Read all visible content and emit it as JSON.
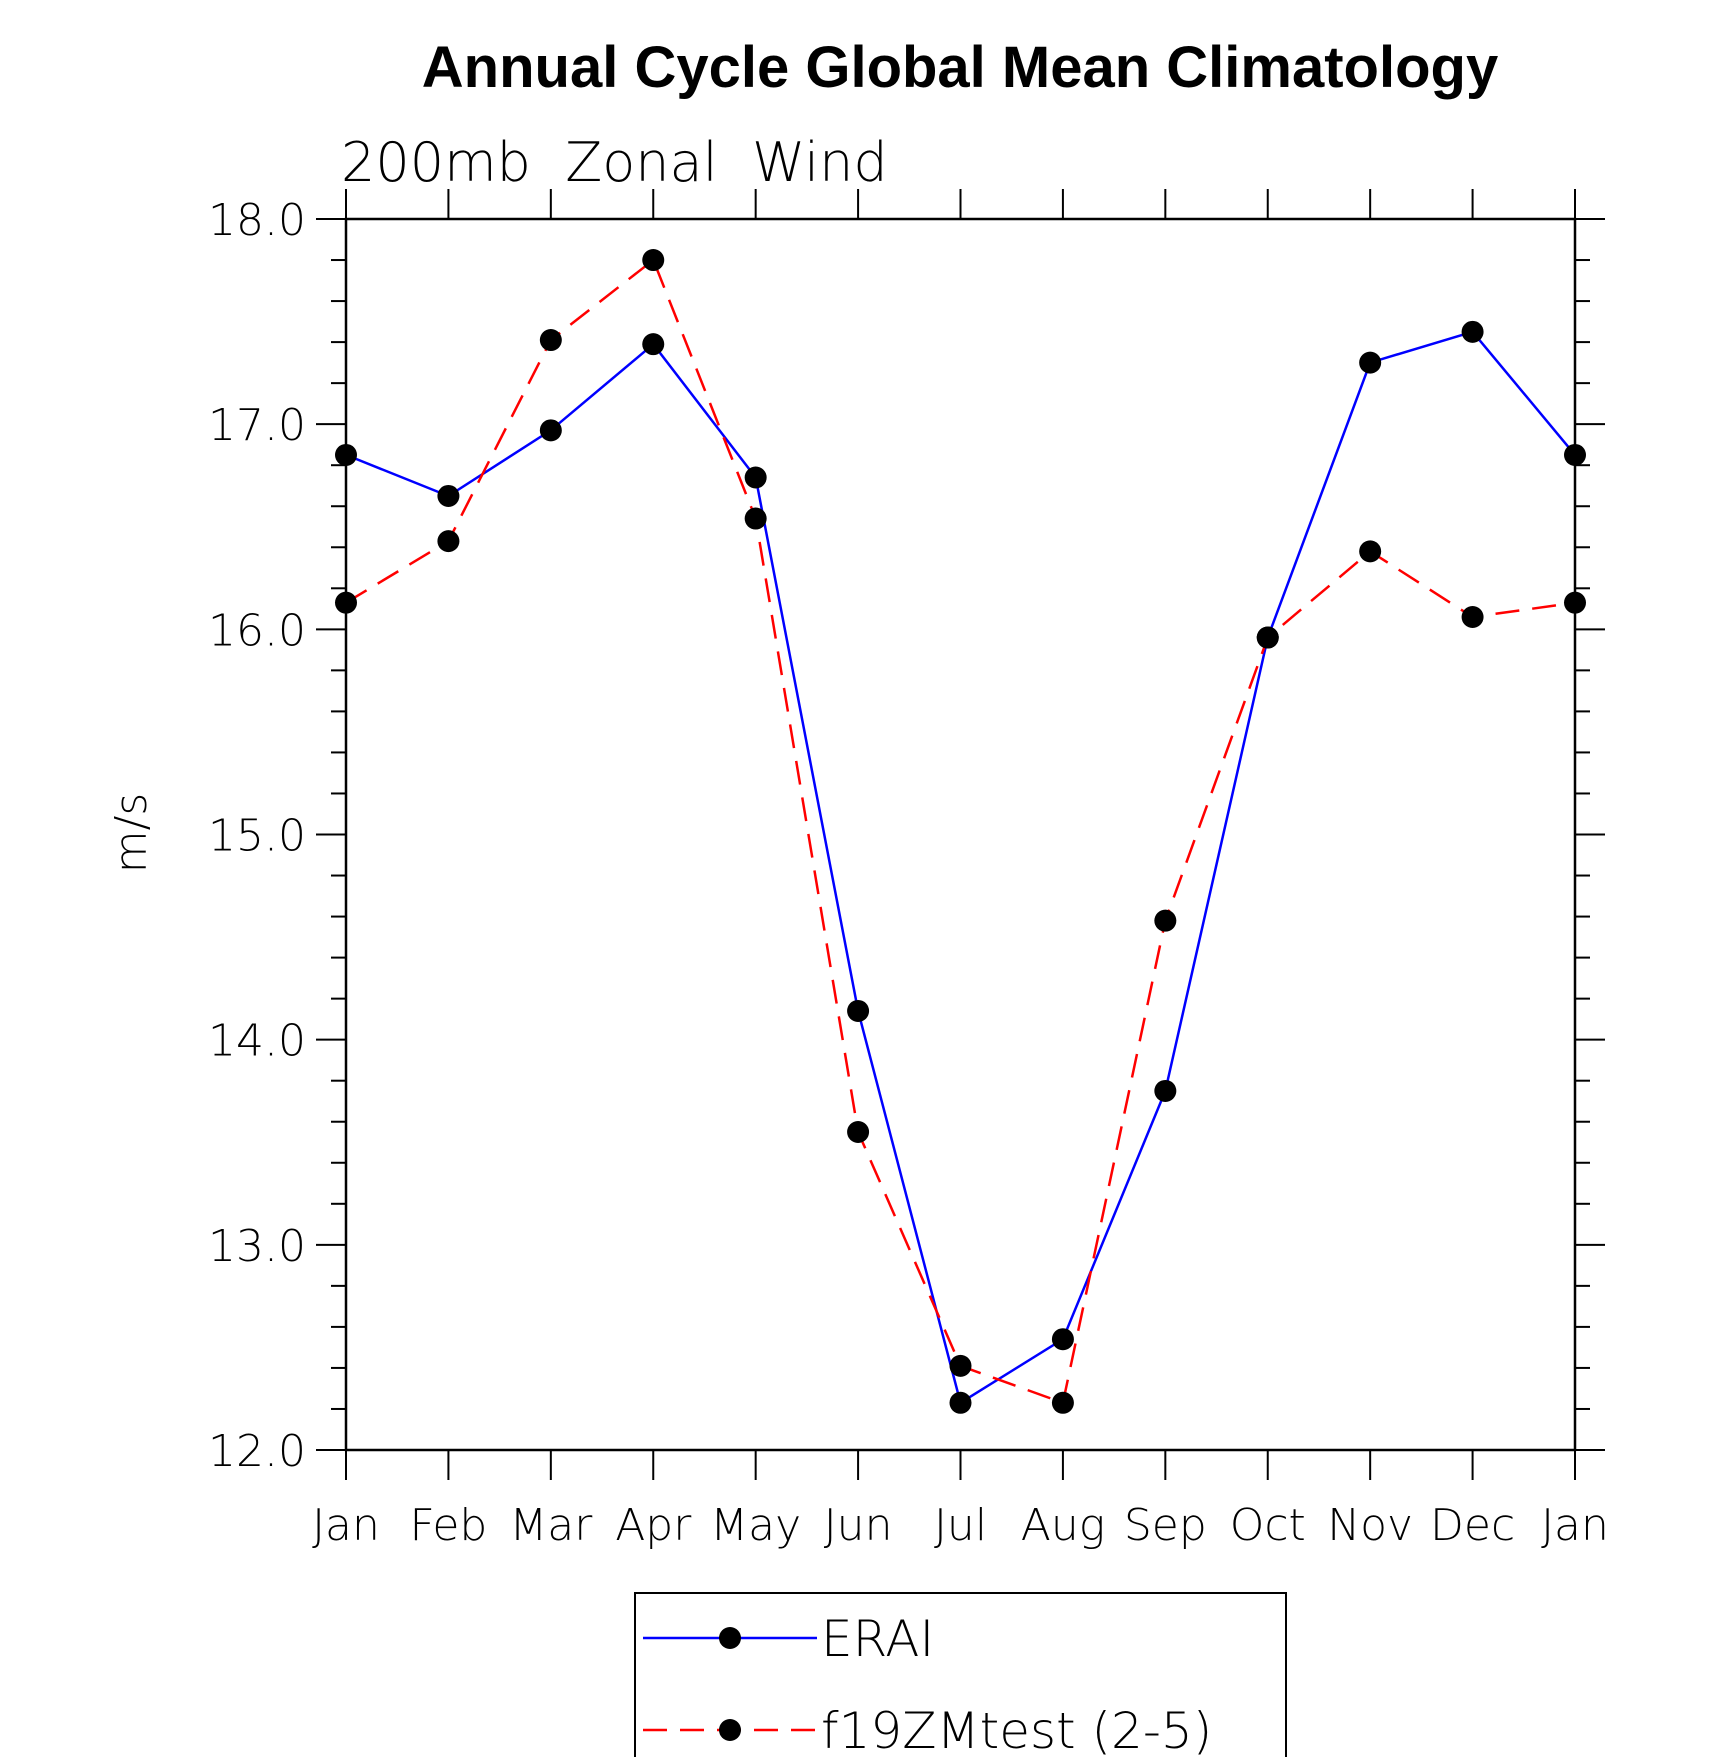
{
  "chart_data": {
    "type": "line",
    "title": "Annual Cycle Global Mean Climatology",
    "subtitle": "200mb  Zonal  Wind",
    "ylabel": "m/s",
    "xlabel": "",
    "categories": [
      "Jan",
      "Feb",
      "Mar",
      "Apr",
      "May",
      "Jun",
      "Jul",
      "Aug",
      "Sep",
      "Oct",
      "Nov",
      "Dec",
      "Jan"
    ],
    "ylim": [
      12.0,
      18.0
    ],
    "yticks": [
      "12.0",
      "13.0",
      "14.0",
      "15.0",
      "16.0",
      "17.0",
      "18.0"
    ],
    "grid": false,
    "legend_position": "bottom",
    "series": [
      {
        "name": "ERAI",
        "color": "#0000ff",
        "dash": "solid",
        "marker": "filled-circle",
        "values": [
          16.85,
          16.65,
          16.97,
          17.39,
          16.74,
          14.14,
          12.23,
          12.54,
          13.75,
          15.96,
          17.3,
          17.45,
          16.85
        ]
      },
      {
        "name": "f19ZMtest (2-5)",
        "color": "#ff0000",
        "dash": "dashed",
        "marker": "filled-circle",
        "values": [
          16.13,
          16.43,
          17.41,
          17.8,
          16.54,
          13.55,
          12.41,
          12.23,
          14.58,
          15.96,
          16.38,
          16.06,
          16.13
        ]
      }
    ]
  }
}
